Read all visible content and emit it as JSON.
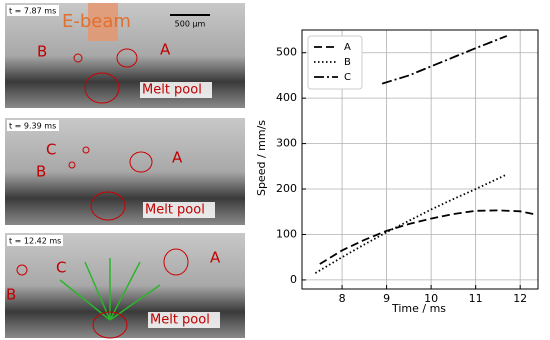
{
  "panels": [
    {
      "time": "t = 7.87 ms",
      "beam": "E-beam",
      "scale": "500 µm",
      "labels": [
        "B",
        "A"
      ],
      "pool": "Melt pool"
    },
    {
      "time": "t = 9.39 ms",
      "labels": [
        "C",
        "B",
        "A"
      ],
      "pool": "Melt pool"
    },
    {
      "time": "t = 12.42 ms",
      "labels": [
        "A",
        "C",
        "B"
      ],
      "pool": "Melt pool"
    }
  ],
  "chart_data": {
    "type": "line",
    "xlabel": "Time / ms",
    "ylabel": "Speed / mm/s",
    "xlim": [
      7.1,
      12.4
    ],
    "xticks": [
      8,
      9,
      10,
      11,
      12
    ],
    "ylim": [
      -20,
      550
    ],
    "yticks": [
      0,
      100,
      200,
      300,
      400,
      500
    ],
    "grid": true,
    "legend": "upper left",
    "series": [
      {
        "name": "A",
        "color": "#000000",
        "linestyle": "dashed",
        "x": [
          7.5,
          8,
          8.5,
          9,
          9.5,
          10,
          10.5,
          11,
          11.5,
          12,
          12.3
        ],
        "values": [
          35,
          65,
          88,
          108,
          123,
          135,
          145,
          152,
          153,
          151,
          145
        ]
      },
      {
        "name": "B",
        "color": "#000000",
        "linestyle": "dotted",
        "x": [
          7.4,
          8,
          8.5,
          9,
          9.5,
          10,
          10.5,
          11,
          11.7
        ],
        "values": [
          15,
          50,
          78,
          105,
          130,
          155,
          178,
          200,
          232
        ]
      },
      {
        "name": "C",
        "color": "#000000",
        "linestyle": "dashdot",
        "x": [
          8.9,
          9.5,
          10,
          10.5,
          11,
          11.7
        ],
        "values": [
          432,
          450,
          470,
          490,
          510,
          537
        ]
      }
    ]
  }
}
